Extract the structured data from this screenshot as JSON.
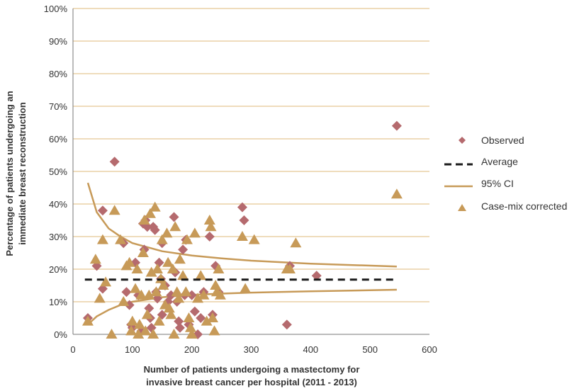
{
  "chart_data": {
    "type": "scatter",
    "title": "",
    "xlabel_lines": [
      "Number of patients undergoing a mastectomy for",
      "invasive breast cancer per hospital (2011 - 2013)"
    ],
    "ylabel_lines": [
      "Percentage of patients undergoing an",
      "immediate breast reconstruction"
    ],
    "xlim": [
      0,
      600
    ],
    "ylim": [
      0,
      100
    ],
    "x_ticks": [
      0,
      100,
      200,
      300,
      400,
      500,
      600
    ],
    "x_tick_labels": [
      "0",
      "100",
      "200",
      "300",
      "400",
      "500",
      "600"
    ],
    "y_ticks": [
      0,
      10,
      20,
      30,
      40,
      50,
      60,
      70,
      80,
      90,
      100
    ],
    "y_tick_labels": [
      "0%",
      "10%",
      "20%",
      "30%",
      "40%",
      "50%",
      "60%",
      "70%",
      "80%",
      "90%",
      "100%"
    ],
    "grid": "horizontal",
    "legend_position": "right",
    "legend": [
      "Observed",
      "Average",
      "95% CI",
      "Case-mix corrected"
    ],
    "colors": {
      "observed": "#b56a6e",
      "case_mix": "#c79a58",
      "ci": "#c79a58",
      "average": "#1a1a1a",
      "grid": "#efdcbc"
    },
    "series": [
      {
        "name": "Observed",
        "marker": "diamond",
        "points": [
          [
            25,
            5
          ],
          [
            40,
            21
          ],
          [
            50,
            38
          ],
          [
            70,
            53
          ],
          [
            50,
            14
          ],
          [
            85,
            28
          ],
          [
            90,
            13
          ],
          [
            95,
            9
          ],
          [
            98,
            3
          ],
          [
            100,
            2
          ],
          [
            105,
            22
          ],
          [
            110,
            12
          ],
          [
            115,
            1
          ],
          [
            118,
            34
          ],
          [
            120,
            26
          ],
          [
            122,
            35
          ],
          [
            125,
            33
          ],
          [
            128,
            8
          ],
          [
            130,
            5
          ],
          [
            132,
            2
          ],
          [
            135,
            33
          ],
          [
            138,
            32
          ],
          [
            140,
            13
          ],
          [
            142,
            11
          ],
          [
            145,
            22
          ],
          [
            148,
            17
          ],
          [
            150,
            28
          ],
          [
            155,
            15
          ],
          [
            160,
            10
          ],
          [
            165,
            12
          ],
          [
            170,
            36
          ],
          [
            172,
            19
          ],
          [
            175,
            10
          ],
          [
            178,
            4
          ],
          [
            180,
            2
          ],
          [
            185,
            26
          ],
          [
            190,
            29
          ],
          [
            195,
            3
          ],
          [
            200,
            12
          ],
          [
            205,
            7
          ],
          [
            210,
            0
          ],
          [
            215,
            5
          ],
          [
            220,
            13
          ],
          [
            230,
            30
          ],
          [
            235,
            6
          ],
          [
            240,
            21
          ],
          [
            245,
            13
          ],
          [
            285,
            39
          ],
          [
            288,
            35
          ],
          [
            360,
            3
          ],
          [
            365,
            21
          ],
          [
            410,
            18
          ],
          [
            545,
            64
          ],
          [
            150,
            6
          ],
          [
            188,
            12
          ]
        ]
      },
      {
        "name": "Average",
        "type": "line",
        "y": 16.8,
        "x_range": [
          20,
          545
        ]
      },
      {
        "name": "95% CI",
        "type": "line",
        "upper": [
          [
            25,
            46.5
          ],
          [
            40,
            37.5
          ],
          [
            60,
            32.5
          ],
          [
            80,
            30
          ],
          [
            100,
            28
          ],
          [
            150,
            25.5
          ],
          [
            200,
            24.2
          ],
          [
            250,
            23.3
          ],
          [
            300,
            22.6
          ],
          [
            400,
            21.7
          ],
          [
            545,
            20.8
          ]
        ],
        "lower": [
          [
            25,
            3
          ],
          [
            40,
            5.5
          ],
          [
            60,
            7.5
          ],
          [
            80,
            9
          ],
          [
            100,
            10
          ],
          [
            150,
            11.4
          ],
          [
            200,
            12.1
          ],
          [
            250,
            12.5
          ],
          [
            300,
            12.8
          ],
          [
            400,
            13.2
          ],
          [
            545,
            13.7
          ]
        ]
      },
      {
        "name": "Case-mix corrected",
        "marker": "triangle",
        "points": [
          [
            25,
            4
          ],
          [
            38,
            23
          ],
          [
            45,
            11
          ],
          [
            50,
            29
          ],
          [
            55,
            16
          ],
          [
            65,
            0
          ],
          [
            70,
            38
          ],
          [
            80,
            29
          ],
          [
            85,
            10
          ],
          [
            90,
            21
          ],
          [
            95,
            22
          ],
          [
            98,
            1
          ],
          [
            100,
            4
          ],
          [
            105,
            14
          ],
          [
            108,
            20
          ],
          [
            110,
            0
          ],
          [
            112,
            3
          ],
          [
            115,
            12
          ],
          [
            118,
            25
          ],
          [
            120,
            35
          ],
          [
            122,
            1
          ],
          [
            125,
            6
          ],
          [
            128,
            12
          ],
          [
            130,
            37
          ],
          [
            132,
            19
          ],
          [
            135,
            0
          ],
          [
            138,
            39
          ],
          [
            140,
            13
          ],
          [
            142,
            20
          ],
          [
            145,
            4
          ],
          [
            148,
            17
          ],
          [
            150,
            29
          ],
          [
            152,
            15
          ],
          [
            155,
            9
          ],
          [
            158,
            31
          ],
          [
            160,
            22
          ],
          [
            162,
            8
          ],
          [
            165,
            6
          ],
          [
            168,
            20
          ],
          [
            170,
            0
          ],
          [
            172,
            33
          ],
          [
            175,
            13
          ],
          [
            178,
            11
          ],
          [
            180,
            23
          ],
          [
            185,
            18
          ],
          [
            190,
            13
          ],
          [
            192,
            29
          ],
          [
            195,
            5
          ],
          [
            198,
            2
          ],
          [
            200,
            0
          ],
          [
            205,
            31
          ],
          [
            210,
            11
          ],
          [
            215,
            18
          ],
          [
            220,
            12
          ],
          [
            225,
            4
          ],
          [
            230,
            35
          ],
          [
            232,
            33
          ],
          [
            235,
            5
          ],
          [
            238,
            1
          ],
          [
            240,
            15
          ],
          [
            242,
            13
          ],
          [
            245,
            20
          ],
          [
            248,
            12
          ],
          [
            285,
            30
          ],
          [
            290,
            14
          ],
          [
            305,
            29
          ],
          [
            360,
            20
          ],
          [
            365,
            20
          ],
          [
            375,
            28
          ],
          [
            545,
            43
          ]
        ]
      }
    ]
  }
}
